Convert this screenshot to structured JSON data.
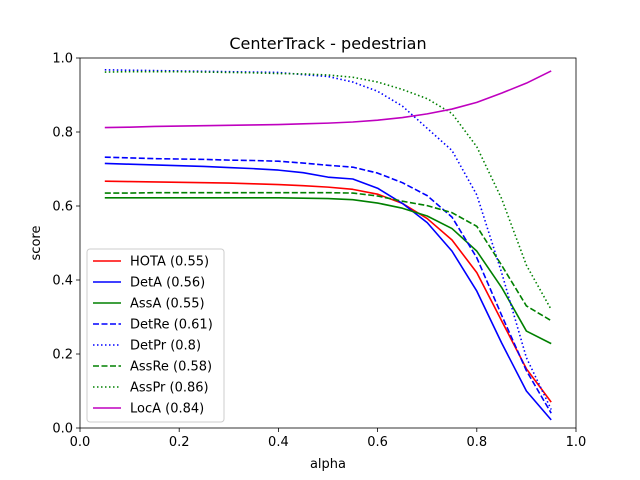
{
  "chart_data": {
    "type": "line",
    "title": "CenterTrack - pedestrian",
    "xlabel": "alpha",
    "ylabel": "score",
    "xlim": [
      0.0,
      1.0
    ],
    "ylim": [
      0.0,
      1.0
    ],
    "xticks": [
      "0.0",
      "0.2",
      "0.4",
      "0.6",
      "0.8",
      "1.0"
    ],
    "yticks": [
      "0.0",
      "0.2",
      "0.4",
      "0.6",
      "0.8",
      "1.0"
    ],
    "grid": false,
    "legend": "lower-left",
    "x": [
      0.05,
      0.1,
      0.15,
      0.2,
      0.25,
      0.3,
      0.35,
      0.4,
      0.45,
      0.5,
      0.55,
      0.6,
      0.65,
      0.7,
      0.75,
      0.8,
      0.85,
      0.9,
      0.95
    ],
    "series": [
      {
        "name": "HOTA (0.55)",
        "color": "#ff0000",
        "dash": "solid",
        "values": [
          0.667,
          0.666,
          0.665,
          0.664,
          0.663,
          0.662,
          0.66,
          0.658,
          0.655,
          0.651,
          0.645,
          0.632,
          0.607,
          0.566,
          0.508,
          0.42,
          0.29,
          0.16,
          0.07
        ]
      },
      {
        "name": "DetA (0.56)",
        "color": "#0000ff",
        "dash": "solid",
        "values": [
          0.715,
          0.713,
          0.711,
          0.709,
          0.707,
          0.704,
          0.701,
          0.697,
          0.69,
          0.678,
          0.673,
          0.648,
          0.607,
          0.555,
          0.478,
          0.37,
          0.23,
          0.1,
          0.022
        ]
      },
      {
        "name": "AssA (0.55)",
        "color": "#008000",
        "dash": "solid",
        "values": [
          0.622,
          0.622,
          0.622,
          0.622,
          0.622,
          0.622,
          0.622,
          0.622,
          0.621,
          0.62,
          0.617,
          0.608,
          0.594,
          0.573,
          0.539,
          0.478,
          0.38,
          0.262,
          0.228
        ]
      },
      {
        "name": "DetRe (0.61)",
        "color": "#0000ff",
        "dash": "dashed",
        "values": [
          0.732,
          0.73,
          0.728,
          0.727,
          0.726,
          0.724,
          0.723,
          0.721,
          0.716,
          0.71,
          0.705,
          0.689,
          0.663,
          0.628,
          0.57,
          0.46,
          0.305,
          0.155,
          0.04
        ]
      },
      {
        "name": "DetPr (0.8)",
        "color": "#0000ff",
        "dash": "dotted",
        "values": [
          0.968,
          0.967,
          0.966,
          0.965,
          0.964,
          0.963,
          0.962,
          0.961,
          0.955,
          0.95,
          0.935,
          0.91,
          0.87,
          0.81,
          0.75,
          0.63,
          0.42,
          0.19,
          0.05
        ]
      },
      {
        "name": "AssRe (0.58)",
        "color": "#008000",
        "dash": "dashed",
        "values": [
          0.635,
          0.635,
          0.636,
          0.636,
          0.636,
          0.636,
          0.636,
          0.636,
          0.636,
          0.636,
          0.635,
          0.627,
          0.613,
          0.601,
          0.582,
          0.545,
          0.44,
          0.33,
          0.29
        ]
      },
      {
        "name": "AssPr (0.86)",
        "color": "#008000",
        "dash": "dotted",
        "values": [
          0.962,
          0.963,
          0.963,
          0.963,
          0.962,
          0.961,
          0.96,
          0.958,
          0.957,
          0.954,
          0.948,
          0.935,
          0.915,
          0.89,
          0.85,
          0.76,
          0.62,
          0.44,
          0.32
        ]
      },
      {
        "name": "LocA (0.84)",
        "color": "#bf00bf",
        "dash": "solid",
        "values": [
          0.812,
          0.813,
          0.815,
          0.816,
          0.817,
          0.818,
          0.819,
          0.82,
          0.822,
          0.824,
          0.827,
          0.832,
          0.839,
          0.849,
          0.862,
          0.88,
          0.905,
          0.932,
          0.965
        ]
      }
    ]
  }
}
